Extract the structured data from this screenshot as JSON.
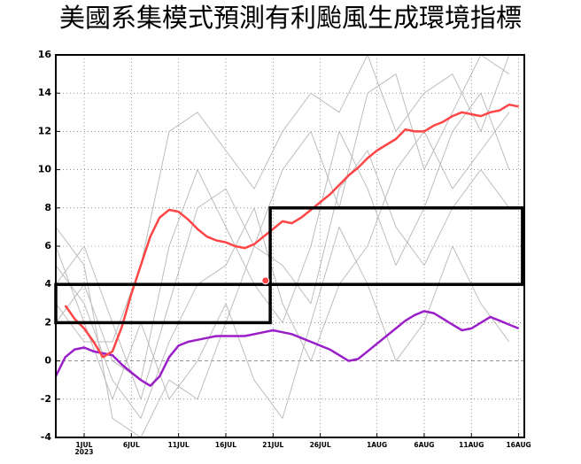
{
  "chart_data": {
    "type": "line",
    "title": "美國系集模式預測有利颱風生成環境指標",
    "x": [
      -3,
      -2,
      -1,
      0,
      1,
      2,
      3,
      4,
      5,
      6,
      7,
      8,
      9,
      10,
      11,
      12,
      13,
      14,
      15,
      16,
      17,
      18,
      19,
      20,
      21,
      22,
      23,
      24,
      25,
      26,
      27,
      28,
      29,
      30,
      31,
      32,
      33,
      34,
      35,
      36,
      37,
      38,
      39,
      40,
      41,
      42,
      43,
      44,
      45,
      46
    ],
    "xlim": [
      -3,
      46.6
    ],
    "xticks": [
      {
        "value": 0,
        "label": "1JUL"
      },
      {
        "value": 5,
        "label": "6JUL"
      },
      {
        "value": 10,
        "label": "11JUL"
      },
      {
        "value": 15,
        "label": "16JUL"
      },
      {
        "value": 20,
        "label": "21JUL"
      },
      {
        "value": 25,
        "label": "26JUL"
      },
      {
        "value": 31,
        "label": "1AUG"
      },
      {
        "value": 36,
        "label": "6AUG"
      },
      {
        "value": 41,
        "label": "11AUG"
      },
      {
        "value": 46,
        "label": "16AUG"
      }
    ],
    "xtick_year": "2023",
    "ylim": [
      -4,
      16
    ],
    "yticks": [
      -4,
      -2,
      0,
      2,
      4,
      6,
      8,
      10,
      12,
      14,
      16
    ],
    "grid": true,
    "series": [
      {
        "color": "#bdbdbd",
        "x": [
          -3,
          0,
          3,
          6,
          9,
          12,
          15,
          18,
          21,
          24,
          27,
          30,
          33,
          36,
          39,
          42,
          45
        ],
        "values": [
          4,
          6,
          2,
          -2,
          3,
          8,
          9,
          6,
          10,
          12,
          8,
          14,
          15,
          10,
          13,
          16,
          15
        ]
      },
      {
        "color": "#bdbdbd",
        "x": [
          -3,
          0,
          3,
          6,
          9,
          12,
          15,
          18,
          21,
          24,
          27,
          30,
          33,
          36,
          39,
          42,
          45
        ],
        "values": [
          5,
          3,
          -1,
          -3,
          1,
          4,
          5,
          8,
          3,
          0,
          4,
          6,
          10,
          12,
          9,
          11,
          13
        ]
      },
      {
        "color": "#bdbdbd",
        "x": [
          -3,
          0,
          3,
          6,
          9,
          12,
          15,
          18,
          21,
          24,
          27,
          30,
          33,
          36,
          39,
          42,
          45
        ],
        "values": [
          2,
          4,
          0,
          -1,
          6,
          10,
          7,
          4,
          2,
          6,
          12,
          9,
          5,
          8,
          12,
          14,
          10
        ]
      },
      {
        "color": "#bdbdbd",
        "x": [
          -3,
          0,
          3,
          6,
          9,
          12,
          15,
          18,
          21,
          24,
          27,
          30,
          33,
          36,
          39,
          42,
          45
        ],
        "values": [
          6,
          2,
          -2,
          2,
          -2,
          0,
          3,
          -1,
          -3,
          2,
          7,
          4,
          0,
          2,
          6,
          3,
          1
        ]
      },
      {
        "color": "#bdbdbd",
        "x": [
          -3,
          0,
          3,
          6,
          9,
          12,
          15,
          18,
          21,
          24,
          27,
          30,
          33,
          36,
          39,
          42,
          45
        ],
        "values": [
          3,
          1,
          1,
          5,
          12,
          13,
          11,
          9,
          12,
          14,
          13,
          16,
          12,
          14,
          15,
          12,
          16
        ]
      },
      {
        "color": "#bdbdbd",
        "x": [
          -3,
          0,
          3,
          6,
          9,
          12,
          15,
          18,
          21,
          24,
          27,
          30,
          33,
          36,
          39,
          42,
          45
        ],
        "values": [
          7,
          5,
          -3,
          -4,
          -1,
          -2,
          2,
          6,
          5,
          3,
          9,
          11,
          7,
          5,
          8,
          10,
          8
        ]
      },
      {
        "color": "#9b1fc9",
        "values": [
          -0.8,
          0.2,
          0.6,
          0.7,
          0.5,
          0.4,
          0.3,
          -0.2,
          -0.6,
          -1.0,
          -1.3,
          -0.8,
          0.2,
          0.8,
          1.0,
          1.1,
          1.2,
          1.3,
          1.3,
          1.3,
          1.3,
          1.4,
          1.5,
          1.6,
          1.5,
          1.4,
          1.2,
          1.0,
          0.8,
          0.6,
          0.3,
          0.0,
          0.1,
          0.5,
          0.9,
          1.3,
          1.7,
          2.1,
          2.4,
          2.6,
          2.5,
          2.2,
          1.9,
          1.6,
          1.7,
          2.0,
          2.3,
          2.1,
          1.9,
          1.7
        ]
      },
      {
        "color": "#ff4545",
        "values": [
          null,
          2.9,
          2.2,
          1.7,
          1.0,
          0.2,
          0.5,
          1.8,
          3.5,
          5.0,
          6.5,
          7.5,
          7.9,
          7.8,
          7.4,
          6.9,
          6.5,
          6.3,
          6.2,
          6.0,
          5.9,
          6.1,
          6.5,
          6.9,
          7.3,
          7.2,
          7.5,
          7.9,
          8.3,
          8.7,
          9.2,
          9.7,
          10.1,
          10.6,
          11.0,
          11.3,
          11.6,
          12.1,
          12.0,
          12.0,
          12.3,
          12.5,
          12.8,
          13.0,
          12.9,
          12.8,
          13.0,
          13.1,
          13.4,
          13.3
        ]
      }
    ],
    "boxes": [
      {
        "x": [
          -3,
          19.7
        ],
        "y": [
          2,
          4
        ]
      },
      {
        "x": [
          19.7,
          46.4
        ],
        "y": [
          4,
          8
        ]
      }
    ],
    "marker": {
      "x": 19.2,
      "y": 4.2,
      "color": "#ff4545"
    }
  }
}
